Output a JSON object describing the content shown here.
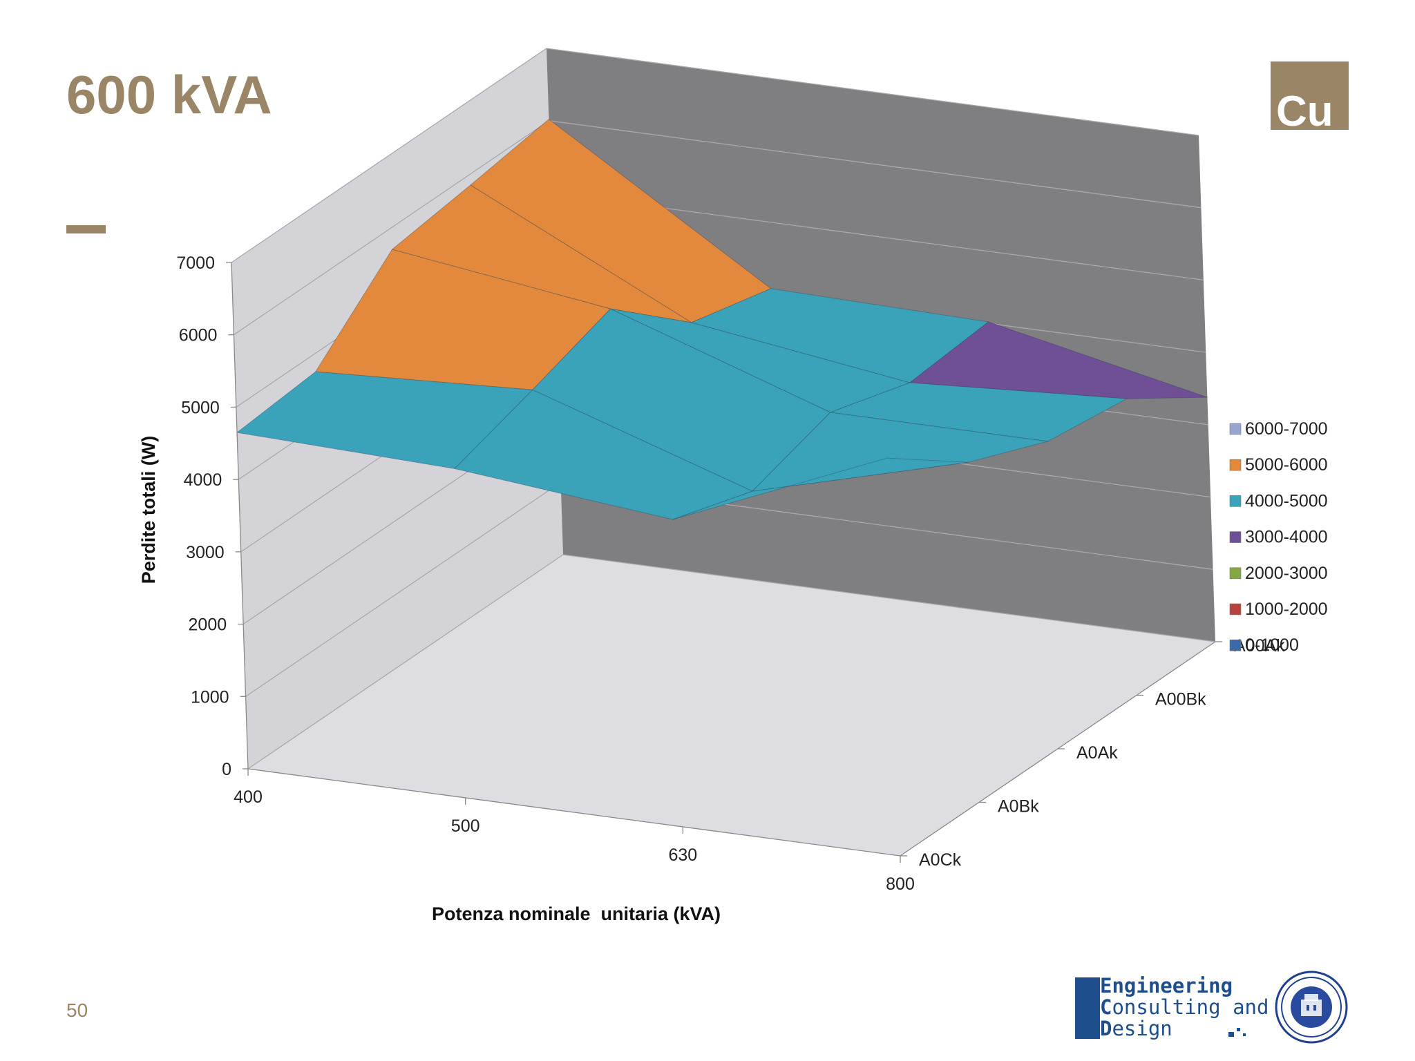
{
  "slide": {
    "title": "600 kVA",
    "badge": "Cu",
    "page_number": "50"
  },
  "logo": {
    "line1_initial": "E",
    "line1_rest": "ngineering",
    "line2_initial": "C",
    "line2_rest": "onsulting and",
    "line3_initial": "D",
    "line3_rest": "esign",
    "seal_icon": "university-seal-icon"
  },
  "colors": {
    "title": "#9a8566",
    "logo_blue": "#1f4e8c",
    "back_wall": "#7f7e80",
    "side_wall": "#d4d3d7",
    "floor": "#dedde1"
  },
  "chart_data": {
    "type": "surface",
    "title": "",
    "xlabel": "Potenza nominale  unitaria (kVA)",
    "ylabel": "Perdite totali (W)",
    "x_ticks": [
      "400",
      "500",
      "630",
      "800"
    ],
    "depth_ticks": [
      "A00Ak",
      "A00Bk",
      "A0Ak",
      "A0Bk",
      "A0Ck"
    ],
    "z_ticks": [
      "0",
      "1000",
      "2000",
      "3000",
      "4000",
      "5000",
      "6000",
      "7000"
    ],
    "zlim": [
      0,
      7000
    ],
    "legend_position": "right",
    "legend": [
      {
        "label": "6000-7000",
        "color": "#97a5cf"
      },
      {
        "label": "5000-6000",
        "color": "#e2893e"
      },
      {
        "label": "4000-5000",
        "color": "#3ba3b9"
      },
      {
        "label": "3000-4000",
        "color": "#6f4f96"
      },
      {
        "label": "2000-3000",
        "color": "#86a844"
      },
      {
        "label": "1000-2000",
        "color": "#b6433f"
      },
      {
        "label": "0-1000",
        "color": "#3a6aa8"
      }
    ],
    "surface_values": [
      [
        6020,
        4080,
        4020,
        3380
      ],
      [
        5850,
        4350,
        3920,
        4100
      ],
      [
        5700,
        5280,
        4250,
        4250
      ],
      [
        4750,
        4900,
        3900,
        4700
      ],
      [
        4650,
        4550,
        4250,
        5500
      ]
    ]
  }
}
